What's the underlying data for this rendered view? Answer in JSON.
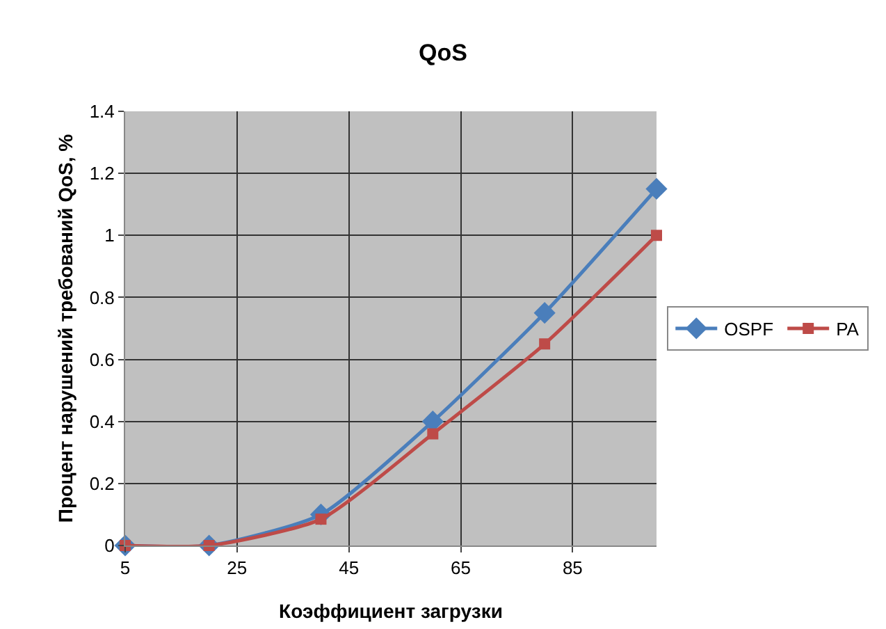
{
  "chart_data": {
    "type": "line",
    "title": "QoS",
    "xlabel": "Коэффициент загрузки",
    "ylabel": "Процент нарушений требований QoS, %",
    "x": [
      5,
      20,
      40,
      60,
      80,
      100
    ],
    "series": [
      {
        "name": "OSPF",
        "color": "#4a7ebb",
        "marker": "diamond",
        "values": [
          0,
          0,
          0.1,
          0.4,
          0.75,
          1.15
        ]
      },
      {
        "name": "PA",
        "color": "#be4b48",
        "marker": "square",
        "values": [
          0,
          0,
          0.085,
          0.36,
          0.65,
          1.0
        ]
      }
    ],
    "xlim": [
      5,
      100
    ],
    "xticks": [
      5,
      25,
      45,
      65,
      85
    ],
    "ylim": [
      0,
      1.4
    ],
    "yticks": [
      0,
      0.2,
      0.4,
      0.6,
      0.8,
      1,
      1.2,
      1.4
    ],
    "grid": true,
    "legend": "right",
    "line_style": "solid"
  }
}
